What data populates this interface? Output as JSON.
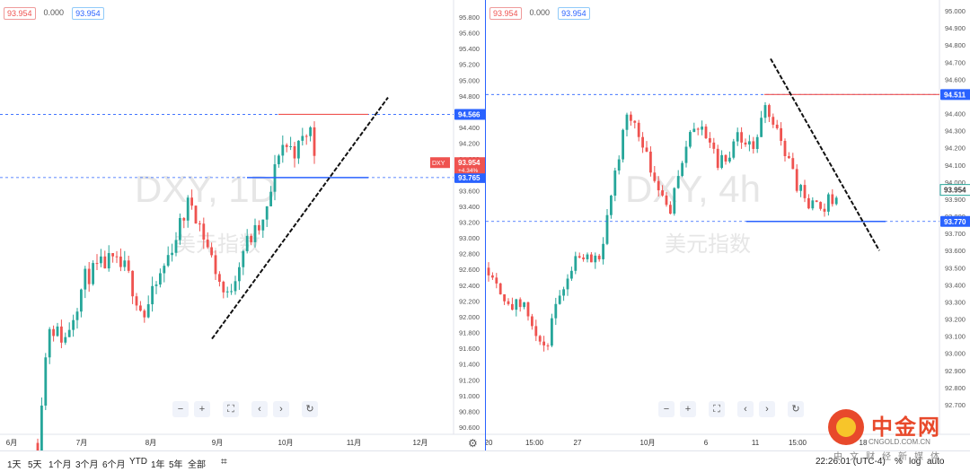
{
  "left_chart": {
    "symbol": "DXY",
    "watermark": "DXY, 1D",
    "watermark_cn": "美元指数",
    "header": {
      "price": "93.954",
      "change": "0.000",
      "price2": "93.954"
    },
    "price_ticks": [
      "95.800",
      "95.600",
      "95.400",
      "95.200",
      "95.000",
      "94.800",
      "94.600",
      "94.400",
      "94.200",
      "94.000",
      "93.800",
      "93.600",
      "93.400",
      "93.200",
      "93.000",
      "92.800",
      "92.600",
      "92.400",
      "92.200",
      "92.000",
      "91.800",
      "91.600",
      "91.400",
      "91.200",
      "91.000",
      "90.800",
      "90.600"
    ],
    "time_labels": [
      "6月",
      "7月",
      "8月",
      "9月",
      "10月",
      "11月",
      "12月"
    ],
    "level_resistance": {
      "label": "94.566",
      "value": 94.566,
      "color": "#2962ff"
    },
    "level_support": {
      "label": "93.765",
      "value": 93.765,
      "color": "#2962ff"
    },
    "last_price": {
      "tag": "DXY",
      "label": "93.954",
      "change": "+4.34%",
      "color": "#ef5350"
    }
  },
  "right_chart": {
    "watermark": "DXY, 4h",
    "watermark_cn": "美元指数",
    "header": {
      "price": "93.954",
      "change": "0.000",
      "price2": "93.954"
    },
    "price_ticks": [
      "95.000",
      "94.900",
      "94.800",
      "94.700",
      "94.600",
      "94.500",
      "94.400",
      "94.300",
      "94.200",
      "94.100",
      "94.000",
      "93.900",
      "93.800",
      "93.700",
      "93.600",
      "93.500",
      "93.400",
      "93.300",
      "93.200",
      "93.100",
      "93.000",
      "92.900",
      "92.800",
      "92.700"
    ],
    "time_labels": [
      "20",
      "15:00",
      "27",
      "10月",
      "6",
      "11",
      "15:00",
      "18"
    ],
    "level_resistance": {
      "label": "94.511",
      "value": 94.511,
      "color": "#2962ff"
    },
    "level_support": {
      "label": "93.770",
      "value": 93.77,
      "color": "#2962ff"
    },
    "last_price": {
      "label": "93.954",
      "color": "#26a69a"
    }
  },
  "nav_buttons": [
    "−",
    "+",
    "⛶",
    "‹",
    "›",
    "↻"
  ],
  "range_buttons": [
    "1天",
    "5天",
    "1个月",
    "3个月",
    "6个月",
    "YTD",
    "1年",
    "5年",
    "全部"
  ],
  "bottom_right": {
    "time": "22:26:01 (UTC-4)",
    "percent": "%",
    "log": "log",
    "auto": "auto"
  },
  "logo": {
    "name": "中金网",
    "url": "CNGOLD.COM.CN",
    "sub": "中文财经新媒体"
  },
  "colors": {
    "up": "#26a69a",
    "down": "#ef5350",
    "level": "#2962ff",
    "trend": "#111111"
  }
}
